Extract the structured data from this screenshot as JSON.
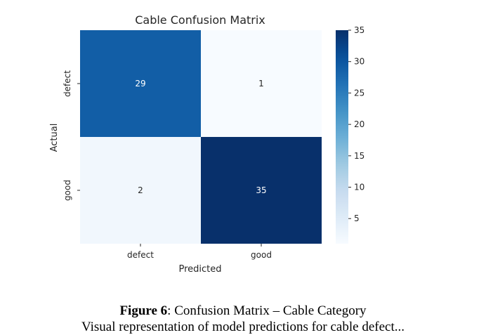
{
  "chart_data": {
    "type": "heatmap",
    "title": "Cable Confusion Matrix",
    "xlabel": "Predicted",
    "ylabel": "Actual",
    "x_categories": [
      "defect",
      "good"
    ],
    "y_categories": [
      "defect",
      "good"
    ],
    "values": [
      [
        29,
        1
      ],
      [
        2,
        35
      ]
    ],
    "colormap": "Blues",
    "color_range": [
      1,
      35
    ],
    "colorbar_ticks": [
      5,
      10,
      15,
      20,
      25,
      30,
      35
    ],
    "grid": false,
    "annotations": true
  },
  "caption": {
    "label": "Figure 6",
    "text": ": Confusion Matrix – Cable Category",
    "continuation": "Visual representation of model predictions for cable defect..."
  }
}
